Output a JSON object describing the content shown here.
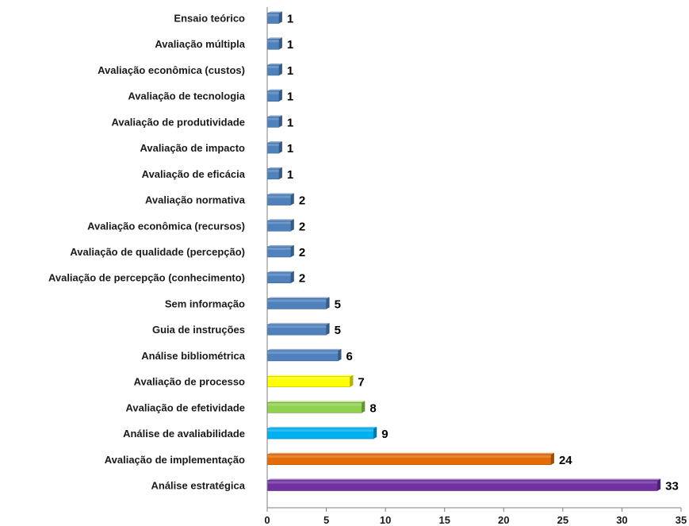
{
  "chart_data": {
    "type": "bar",
    "orientation": "horizontal",
    "categories": [
      "Ensaio teórico",
      "Avaliação múltipla",
      "Avaliação econômica (custos)",
      "Avaliação de tecnologia",
      "Avaliação de produtividade",
      "Avaliação de impacto",
      "Avaliação de eficácia",
      "Avaliação normativa",
      "Avaliação econômica (recursos)",
      "Avaliação de qualidade (percepção)",
      "Avaliação de percepção (conhecimento)",
      "Sem informação",
      "Guia de instruções",
      "Análise bibliométrica",
      "Avaliação de processo",
      "Avaliação de efetividade",
      "Análise de avaliabilidade",
      "Avaliação de implementação",
      "Análise estratégica"
    ],
    "values": [
      1,
      1,
      1,
      1,
      1,
      1,
      1,
      2,
      2,
      2,
      2,
      5,
      5,
      6,
      7,
      8,
      9,
      24,
      33
    ],
    "colors": [
      "#4f81bd",
      "#4f81bd",
      "#4f81bd",
      "#4f81bd",
      "#4f81bd",
      "#4f81bd",
      "#4f81bd",
      "#4f81bd",
      "#4f81bd",
      "#4f81bd",
      "#4f81bd",
      "#4f81bd",
      "#4f81bd",
      "#4f81bd",
      "#ffff00",
      "#92d050",
      "#00b0f0",
      "#e36c09",
      "#7030a0"
    ],
    "xlim": [
      0,
      35
    ],
    "xticks": [
      0,
      5,
      10,
      15,
      20,
      25,
      30,
      35
    ],
    "title": "",
    "xlabel": "",
    "ylabel": "",
    "grid": false,
    "legend": false
  }
}
